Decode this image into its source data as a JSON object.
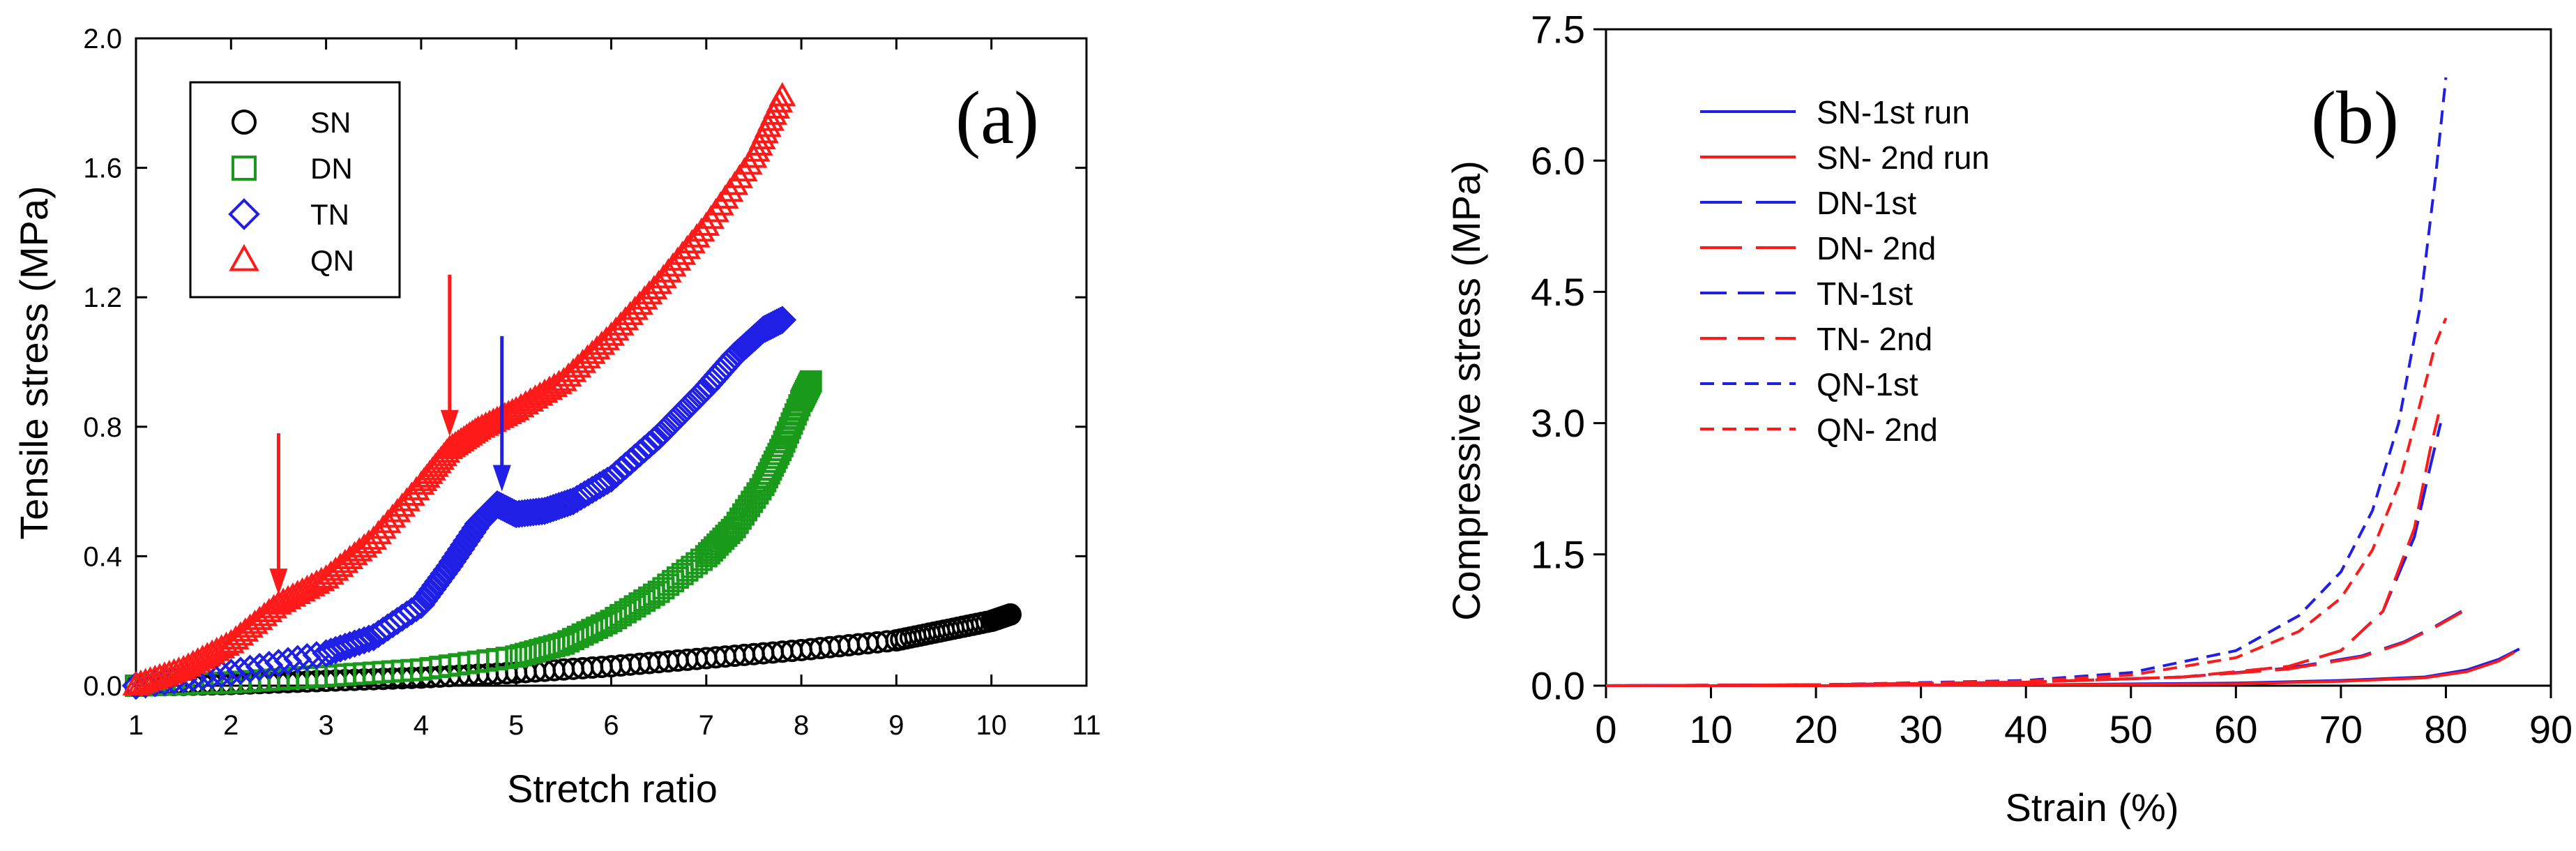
{
  "chart_data": [
    {
      "panel": "(a)",
      "type": "scatter",
      "title": "",
      "xlabel": "Stretch ratio",
      "ylabel": "Tensile stress (MPa)",
      "xlim": [
        1,
        11
      ],
      "ylim": [
        0,
        2.0
      ],
      "x_ticks": [
        "1",
        "2",
        "3",
        "4",
        "5",
        "6",
        "7",
        "8",
        "9",
        "10",
        "11"
      ],
      "y_ticks": [
        "0.0",
        "0.4",
        "0.8",
        "1.2",
        "1.6",
        "2.0"
      ],
      "legend_position": "top-left",
      "series": [
        {
          "name": "SN",
          "marker": "circle",
          "color": "#000000",
          "x": [
            1.0,
            2.0,
            3.0,
            4.0,
            5.0,
            6.0,
            7.0,
            8.0,
            9.0,
            9.5,
            10.0,
            10.2
          ],
          "y": [
            0.0,
            0.005,
            0.015,
            0.025,
            0.04,
            0.06,
            0.085,
            0.11,
            0.14,
            0.17,
            0.2,
            0.22
          ]
        },
        {
          "name": "DN",
          "marker": "square",
          "color": "#1a9a1a",
          "x": [
            1.0,
            2.0,
            3.0,
            4.0,
            5.0,
            5.5,
            6.0,
            6.5,
            7.0,
            7.3,
            7.6,
            7.8,
            8.0,
            8.1
          ],
          "y": [
            0.0,
            0.01,
            0.03,
            0.05,
            0.09,
            0.13,
            0.2,
            0.29,
            0.4,
            0.49,
            0.62,
            0.74,
            0.88,
            0.94
          ]
        },
        {
          "name": "TN",
          "marker": "diamond",
          "color": "#1f1fe6",
          "x": [
            1.0,
            2.0,
            3.0,
            3.5,
            4.0,
            4.3,
            4.6,
            4.8,
            5.0,
            5.3,
            5.6,
            6.0,
            6.5,
            7.0,
            7.3,
            7.6,
            7.8
          ],
          "y": [
            0.0,
            0.04,
            0.1,
            0.15,
            0.25,
            0.37,
            0.5,
            0.56,
            0.53,
            0.54,
            0.57,
            0.64,
            0.77,
            0.92,
            1.02,
            1.1,
            1.13
          ]
        },
        {
          "name": "QN",
          "marker": "triangle",
          "color": "#ff1a1a",
          "x": [
            1.0,
            1.5,
            2.0,
            2.5,
            3.0,
            3.5,
            4.0,
            4.3,
            4.6,
            5.0,
            5.5,
            6.0,
            6.5,
            7.0,
            7.5,
            7.8
          ],
          "y": [
            0.0,
            0.05,
            0.13,
            0.25,
            0.33,
            0.45,
            0.62,
            0.73,
            0.79,
            0.85,
            0.94,
            1.08,
            1.24,
            1.42,
            1.63,
            1.82
          ]
        }
      ],
      "annotations": [
        {
          "type": "arrow",
          "color": "#ff1a1a",
          "x": 2.5,
          "y_from": 0.78,
          "y_to": 0.28
        },
        {
          "type": "arrow",
          "color": "#ff1a1a",
          "x": 4.3,
          "y_from": 1.27,
          "y_to": 0.77
        },
        {
          "type": "arrow",
          "color": "#1f1fe6",
          "x": 4.85,
          "y_from": 1.08,
          "y_to": 0.6
        }
      ]
    },
    {
      "panel": "(b)",
      "type": "line",
      "title": "",
      "xlabel": "Strain (%)",
      "ylabel": "Compressive stress (MPa)",
      "xlim": [
        0,
        90
      ],
      "ylim": [
        0,
        7.5
      ],
      "x_ticks": [
        "0",
        "10",
        "20",
        "30",
        "40",
        "50",
        "60",
        "70",
        "80",
        "90"
      ],
      "y_ticks": [
        "0.0",
        "1.5",
        "3.0",
        "4.5",
        "6.0",
        "7.5"
      ],
      "legend_position": "top-left",
      "series": [
        {
          "name": "SN-1st run",
          "color": "#1f1fe6",
          "dash": "solid",
          "x": [
            0,
            20,
            40,
            60,
            70,
            78,
            82,
            85,
            87
          ],
          "y": [
            0.0,
            0.0,
            0.01,
            0.03,
            0.06,
            0.1,
            0.18,
            0.3,
            0.42
          ]
        },
        {
          "name": "SN- 2nd run",
          "color": "#ff1a1a",
          "dash": "solid",
          "x": [
            0,
            20,
            40,
            60,
            70,
            78,
            82,
            85,
            86.5
          ],
          "y": [
            0.0,
            0.0,
            0.01,
            0.02,
            0.05,
            0.09,
            0.16,
            0.28,
            0.38
          ]
        },
        {
          "name": "DN-1st",
          "color": "#1f1fe6",
          "dash": "longdash",
          "x": [
            0,
            20,
            40,
            55,
            65,
            72,
            76,
            79,
            81.5
          ],
          "y": [
            0.0,
            0.01,
            0.04,
            0.1,
            0.2,
            0.34,
            0.5,
            0.68,
            0.85
          ]
        },
        {
          "name": "DN- 2nd",
          "color": "#ff1a1a",
          "dash": "longdash",
          "x": [
            0,
            20,
            40,
            55,
            65,
            72,
            76,
            79,
            81.5
          ],
          "y": [
            0.0,
            0.01,
            0.04,
            0.1,
            0.19,
            0.33,
            0.49,
            0.67,
            0.84
          ]
        },
        {
          "name": "TN-1st",
          "color": "#1f1fe6",
          "dash": "dash",
          "x": [
            0,
            20,
            40,
            55,
            65,
            70,
            74,
            77,
            78.5,
            79.5
          ],
          "y": [
            0.0,
            0.01,
            0.04,
            0.1,
            0.22,
            0.4,
            0.85,
            1.7,
            2.5,
            3.0
          ]
        },
        {
          "name": "TN- 2nd",
          "color": "#ff1a1a",
          "dash": "dash",
          "x": [
            0,
            20,
            40,
            55,
            65,
            70,
            74,
            77,
            78.5,
            79.3
          ],
          "y": [
            0.0,
            0.01,
            0.04,
            0.1,
            0.22,
            0.4,
            0.85,
            1.8,
            2.7,
            3.1
          ]
        },
        {
          "name": "QN-1st",
          "color": "#1f1fe6",
          "dash": "shortdash",
          "x": [
            0,
            20,
            40,
            50,
            60,
            66,
            70,
            73,
            75.5,
            77.5,
            79,
            80
          ],
          "y": [
            0.0,
            0.01,
            0.06,
            0.15,
            0.4,
            0.8,
            1.3,
            2.0,
            3.0,
            4.3,
            5.8,
            6.95
          ]
        },
        {
          "name": "QN- 2nd",
          "color": "#ff1a1a",
          "dash": "shortdash",
          "x": [
            0,
            20,
            40,
            50,
            60,
            66,
            70,
            73,
            75.5,
            77.5,
            79,
            80
          ],
          "y": [
            0.0,
            0.01,
            0.05,
            0.12,
            0.32,
            0.62,
            1.0,
            1.55,
            2.3,
            3.2,
            3.9,
            4.2
          ]
        }
      ]
    }
  ]
}
